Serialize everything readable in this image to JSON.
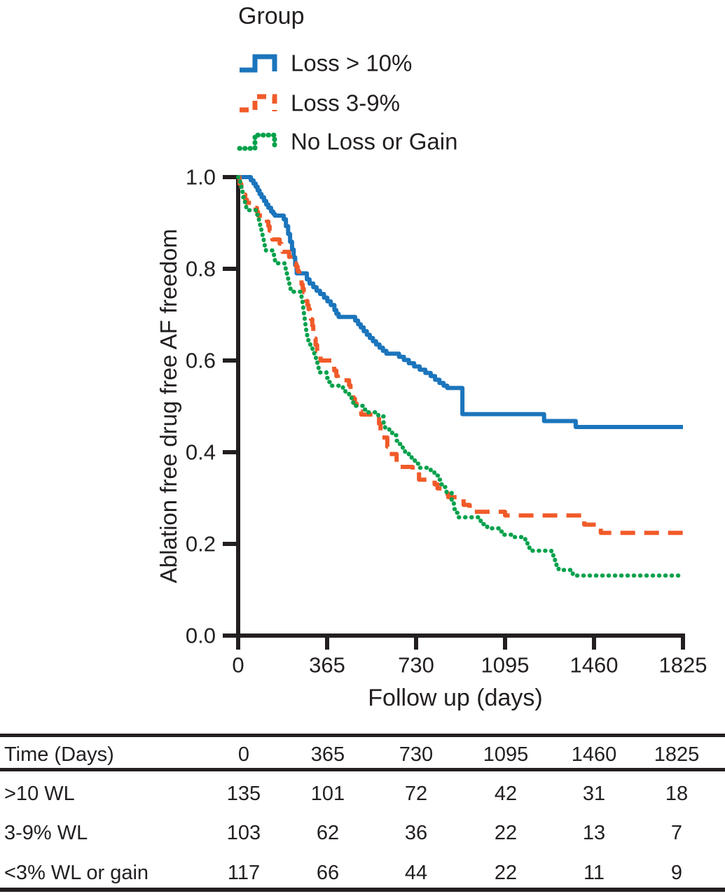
{
  "legend": {
    "title": "Group",
    "items": [
      {
        "label": "Loss > 10%",
        "color": "#1b75bc",
        "style": "solid"
      },
      {
        "label": "Loss 3-9%",
        "color": "#f15a29",
        "style": "dashed"
      },
      {
        "label": "No Loss or Gain",
        "color": "#00a14b",
        "style": "dotted"
      }
    ]
  },
  "chart_data": {
    "type": "line",
    "subtype": "kaplan-meier-step",
    "title": "",
    "xlabel": "Follow up (days)",
    "ylabel": "Ablation free drug free AF freedom",
    "xlim": [
      0,
      1825
    ],
    "ylim": [
      0.0,
      1.0
    ],
    "xticks": [
      0,
      365,
      730,
      1095,
      1460,
      1825
    ],
    "yticks": [
      0.0,
      0.2,
      0.4,
      0.6,
      0.8,
      1.0
    ],
    "grid": false,
    "legend_position": "above-plot-left",
    "series": [
      {
        "name": "Loss > 10%",
        "color": "#1b75bc",
        "line": "solid",
        "steps": [
          [
            0,
            1.0
          ],
          [
            52,
            0.993
          ],
          [
            63,
            0.986
          ],
          [
            72,
            0.979
          ],
          [
            80,
            0.971
          ],
          [
            88,
            0.963
          ],
          [
            96,
            0.956
          ],
          [
            106,
            0.948
          ],
          [
            115,
            0.94
          ],
          [
            124,
            0.933
          ],
          [
            135,
            0.925
          ],
          [
            144,
            0.92
          ],
          [
            150,
            0.916
          ],
          [
            187,
            0.908
          ],
          [
            196,
            0.893
          ],
          [
            205,
            0.876
          ],
          [
            213,
            0.859
          ],
          [
            221,
            0.842
          ],
          [
            228,
            0.825
          ],
          [
            234,
            0.808
          ],
          [
            240,
            0.79
          ],
          [
            282,
            0.777
          ],
          [
            293,
            0.768
          ],
          [
            308,
            0.76
          ],
          [
            322,
            0.752
          ],
          [
            336,
            0.745
          ],
          [
            352,
            0.737
          ],
          [
            366,
            0.729
          ],
          [
            380,
            0.721
          ],
          [
            395,
            0.71
          ],
          [
            403,
            0.702
          ],
          [
            412,
            0.695
          ],
          [
            480,
            0.687
          ],
          [
            492,
            0.679
          ],
          [
            503,
            0.672
          ],
          [
            515,
            0.664
          ],
          [
            528,
            0.656
          ],
          [
            540,
            0.649
          ],
          [
            553,
            0.642
          ],
          [
            566,
            0.635
          ],
          [
            580,
            0.628
          ],
          [
            594,
            0.621
          ],
          [
            608,
            0.615
          ],
          [
            660,
            0.608
          ],
          [
            680,
            0.601
          ],
          [
            700,
            0.594
          ],
          [
            722,
            0.587
          ],
          [
            745,
            0.58
          ],
          [
            768,
            0.573
          ],
          [
            790,
            0.566
          ],
          [
            808,
            0.558
          ],
          [
            826,
            0.551
          ],
          [
            843,
            0.545
          ],
          [
            858,
            0.54
          ],
          [
            920,
            0.483
          ],
          [
            1255,
            0.468
          ],
          [
            1385,
            0.455
          ]
        ]
      },
      {
        "name": "Loss 3-9%",
        "color": "#f15a29",
        "line": "dashed",
        "steps": [
          [
            0,
            1.0
          ],
          [
            6,
            0.985
          ],
          [
            13,
            0.971
          ],
          [
            20,
            0.962
          ],
          [
            29,
            0.951
          ],
          [
            36,
            0.944
          ],
          [
            70,
            0.933
          ],
          [
            77,
            0.924
          ],
          [
            82,
            0.916
          ],
          [
            118,
            0.903
          ],
          [
            124,
            0.893
          ],
          [
            129,
            0.883
          ],
          [
            135,
            0.872
          ],
          [
            140,
            0.864
          ],
          [
            170,
            0.855
          ],
          [
            177,
            0.845
          ],
          [
            182,
            0.837
          ],
          [
            209,
            0.826
          ],
          [
            215,
            0.817
          ],
          [
            221,
            0.812
          ],
          [
            238,
            0.805
          ],
          [
            244,
            0.795
          ],
          [
            250,
            0.786
          ],
          [
            255,
            0.776
          ],
          [
            260,
            0.766
          ],
          [
            265,
            0.757
          ],
          [
            269,
            0.749
          ],
          [
            274,
            0.74
          ],
          [
            279,
            0.73
          ],
          [
            284,
            0.721
          ],
          [
            289,
            0.712
          ],
          [
            294,
            0.702
          ],
          [
            299,
            0.69
          ],
          [
            304,
            0.676
          ],
          [
            308,
            0.662
          ],
          [
            313,
            0.648
          ],
          [
            318,
            0.634
          ],
          [
            324,
            0.621
          ],
          [
            331,
            0.61
          ],
          [
            338,
            0.6
          ],
          [
            394,
            0.578
          ],
          [
            403,
            0.566
          ],
          [
            409,
            0.557
          ],
          [
            455,
            0.546
          ],
          [
            461,
            0.536
          ],
          [
            466,
            0.527
          ],
          [
            472,
            0.517
          ],
          [
            479,
            0.506
          ],
          [
            486,
            0.497
          ],
          [
            494,
            0.489
          ],
          [
            505,
            0.482
          ],
          [
            578,
            0.462
          ],
          [
            584,
            0.447
          ],
          [
            590,
            0.432
          ],
          [
            612,
            0.412
          ],
          [
            618,
            0.396
          ],
          [
            650,
            0.368
          ],
          [
            716,
            0.356
          ],
          [
            742,
            0.34
          ],
          [
            806,
            0.33
          ],
          [
            818,
            0.321
          ],
          [
            850,
            0.31
          ],
          [
            862,
            0.302
          ],
          [
            925,
            0.285
          ],
          [
            950,
            0.27
          ],
          [
            1095,
            0.262
          ],
          [
            1420,
            0.242
          ],
          [
            1488,
            0.224
          ]
        ]
      },
      {
        "name": "No Loss or Gain",
        "color": "#00a14b",
        "line": "dotted",
        "steps": [
          [
            0,
            1.0
          ],
          [
            8,
            0.982
          ],
          [
            13,
            0.969
          ],
          [
            18,
            0.956
          ],
          [
            23,
            0.947
          ],
          [
            28,
            0.937
          ],
          [
            33,
            0.928
          ],
          [
            75,
            0.918
          ],
          [
            80,
            0.908
          ],
          [
            85,
            0.897
          ],
          [
            90,
            0.887
          ],
          [
            95,
            0.877
          ],
          [
            100,
            0.867
          ],
          [
            105,
            0.857
          ],
          [
            109,
            0.848
          ],
          [
            114,
            0.84
          ],
          [
            147,
            0.829
          ],
          [
            151,
            0.818
          ],
          [
            156,
            0.812
          ],
          [
            190,
            0.802
          ],
          [
            195,
            0.793
          ],
          [
            200,
            0.783
          ],
          [
            205,
            0.773
          ],
          [
            210,
            0.763
          ],
          [
            215,
            0.755
          ],
          [
            220,
            0.75
          ],
          [
            255,
            0.742
          ],
          [
            260,
            0.733
          ],
          [
            264,
            0.722
          ],
          [
            267,
            0.712
          ],
          [
            270,
            0.7
          ],
          [
            273,
            0.688
          ],
          [
            276,
            0.675
          ],
          [
            279,
            0.662
          ],
          [
            283,
            0.65
          ],
          [
            288,
            0.64
          ],
          [
            296,
            0.633
          ],
          [
            305,
            0.622
          ],
          [
            312,
            0.61
          ],
          [
            319,
            0.598
          ],
          [
            325,
            0.589
          ],
          [
            330,
            0.578
          ],
          [
            336,
            0.574
          ],
          [
            362,
            0.562
          ],
          [
            370,
            0.553
          ],
          [
            378,
            0.545
          ],
          [
            430,
            0.538
          ],
          [
            440,
            0.531
          ],
          [
            455,
            0.522
          ],
          [
            465,
            0.513
          ],
          [
            472,
            0.505
          ],
          [
            478,
            0.501
          ],
          [
            516,
            0.493
          ],
          [
            530,
            0.487
          ],
          [
            575,
            0.478
          ],
          [
            597,
            0.462
          ],
          [
            603,
            0.453
          ],
          [
            620,
            0.443
          ],
          [
            632,
            0.437
          ],
          [
            650,
            0.425
          ],
          [
            660,
            0.418
          ],
          [
            675,
            0.41
          ],
          [
            685,
            0.401
          ],
          [
            700,
            0.39
          ],
          [
            712,
            0.382
          ],
          [
            725,
            0.375
          ],
          [
            742,
            0.366
          ],
          [
            790,
            0.357
          ],
          [
            805,
            0.349
          ],
          [
            820,
            0.34
          ],
          [
            832,
            0.33
          ],
          [
            842,
            0.324
          ],
          [
            855,
            0.313
          ],
          [
            876,
            0.29
          ],
          [
            885,
            0.276
          ],
          [
            896,
            0.268
          ],
          [
            905,
            0.258
          ],
          [
            995,
            0.25
          ],
          [
            1003,
            0.243
          ],
          [
            1012,
            0.238
          ],
          [
            1022,
            0.234
          ],
          [
            1072,
            0.227
          ],
          [
            1085,
            0.22
          ],
          [
            1135,
            0.215
          ],
          [
            1178,
            0.206
          ],
          [
            1187,
            0.198
          ],
          [
            1195,
            0.19
          ],
          [
            1203,
            0.185
          ],
          [
            1285,
            0.176
          ],
          [
            1293,
            0.168
          ],
          [
            1300,
            0.159
          ],
          [
            1306,
            0.148
          ],
          [
            1315,
            0.143
          ],
          [
            1365,
            0.137
          ],
          [
            1373,
            0.131
          ]
        ]
      }
    ]
  },
  "risk_table": {
    "header": [
      "Time (Days)",
      "0",
      "365",
      "730",
      "1095",
      "1460",
      "1825"
    ],
    "rows": [
      [
        ">10 WL",
        "135",
        "101",
        "72",
        "42",
        "31",
        "18"
      ],
      [
        "3-9% WL",
        "103",
        "62",
        "36",
        "22",
        "13",
        "7"
      ],
      [
        "<3% WL or gain",
        "117",
        "66",
        "44",
        "22",
        "11",
        "9"
      ]
    ]
  }
}
